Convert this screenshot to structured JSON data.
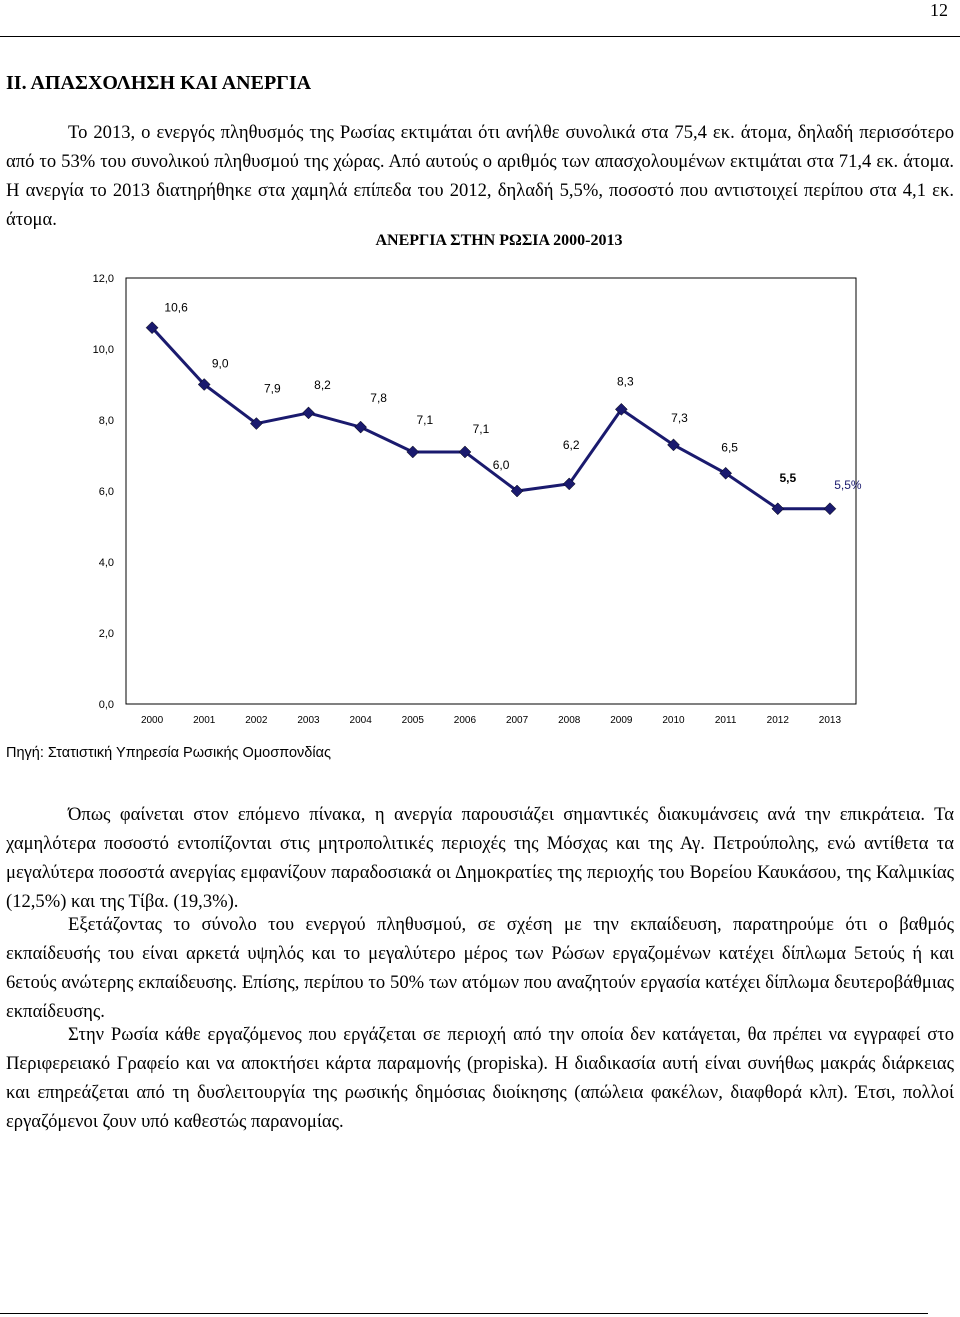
{
  "page": {
    "number": "12",
    "heading": "ΙΙ. ΑΠΑΣΧΟΛΗΣΗ ΚΑΙ ΑΝΕΡΓΙΑ",
    "paragraphs": [
      "Το 2013, ο ενεργός πληθυσμός της Ρωσίας εκτιμάται ότι ανήλθε συνολικά στα 75,4 εκ. άτομα, δηλαδή περισσότερο από το 53% του συνολικού πληθυσμού της χώρας. Από αυτούς ο αριθμός των απασχολουμένων εκτιμάται στα 71,4 εκ. άτομα. Η ανεργία το 2013 διατηρήθηκε στα χαμηλά επίπεδα του 2012, δηλαδή 5,5%, ποσοστό που αντιστοιχεί περίπου στα 4,1 εκ. άτομα.",
      "Όπως φαίνεται στον επόμενο πίνακα, η ανεργία παρουσιάζει σημαντικές διακυμάνσεις ανά την επικράτεια. Τα χαμηλότερα ποσοστό εντοπίζονται στις μητροπολιτικές περιοχές της Μόσχας και της Αγ. Πετρούπολης, ενώ αντίθετα τα μεγαλύτερα ποσοστά ανεργίας εμφανίζουν παραδοσιακά οι Δημοκρατίες της περιοχής του Βορείου Καυκάσου, της Καλμικίας (12,5%) και της Τίβα. (19,3%).",
      "Εξετάζοντας το σύνολο του ενεργού πληθυσμού, σε σχέση με την εκπαίδευση, παρατηρούμε ότι ο βαθμός εκπαίδευσής του είναι αρκετά υψηλός και το μεγαλύτερο μέρος των Ρώσων εργαζομένων κατέχει δίπλωμα 5ετούς ή και 6ετούς ανώτερης εκπαίδευσης. Επίσης, περίπου το 50% των ατόμων που αναζητούν εργασία κατέχει δίπλωμα δευτεροβάθμιας εκπαίδευσης.",
      "Στην Ρωσία κάθε εργαζόμενος που εργάζεται σε περιοχή από την οποία δεν κατάγεται, θα πρέπει να εγγραφεί στο Περιφερειακό Γραφείο και να αποκτήσει κάρτα παραμονής (propiska). Η διαδικασία αυτή είναι συνήθως μακράς διάρκειας και επηρεάζεται από τη δυσλειτουργία της ρωσικής δημόσιας διοίκησης (απώλεια φακέλων, διαφθορά κλπ). Έτσι, πολλοί εργαζόμενοι ζουν υπό καθεστώς παρανομίας."
    ],
    "source": "Πηγή: Στατιστική Υπηρεσία Ρωσικής Ομοσπονδίας"
  },
  "chart_data": {
    "type": "line",
    "title": "ΑΝΕΡΓΙΑ ΣΤΗΝ ΡΩΣΙΑ 2000-2013",
    "categories": [
      "2000",
      "2001",
      "2002",
      "2003",
      "2004",
      "2005",
      "2006",
      "2007",
      "2008",
      "2009",
      "2010",
      "2011",
      "2012",
      "2013"
    ],
    "values": [
      10.6,
      9.0,
      7.9,
      8.2,
      7.8,
      7.1,
      7.1,
      6.0,
      6.2,
      8.3,
      7.3,
      6.5,
      5.5,
      5.5
    ],
    "data_labels": [
      "10,6",
      "9,0",
      "7,9",
      "8,2",
      "7,8",
      "7,1",
      "7,1",
      "6,0",
      "6,2",
      "8,3",
      "7,3",
      "6,5",
      "5,5",
      "5,5%"
    ],
    "y_ticks": [
      "0,0",
      "2,0",
      "4,0",
      "6,0",
      "8,0",
      "10,0",
      "12,0"
    ],
    "ylim": [
      0,
      12
    ],
    "grid": false,
    "legend": "none",
    "line_color": "#1a1a6e",
    "marker_color": "#1a1a6e"
  }
}
